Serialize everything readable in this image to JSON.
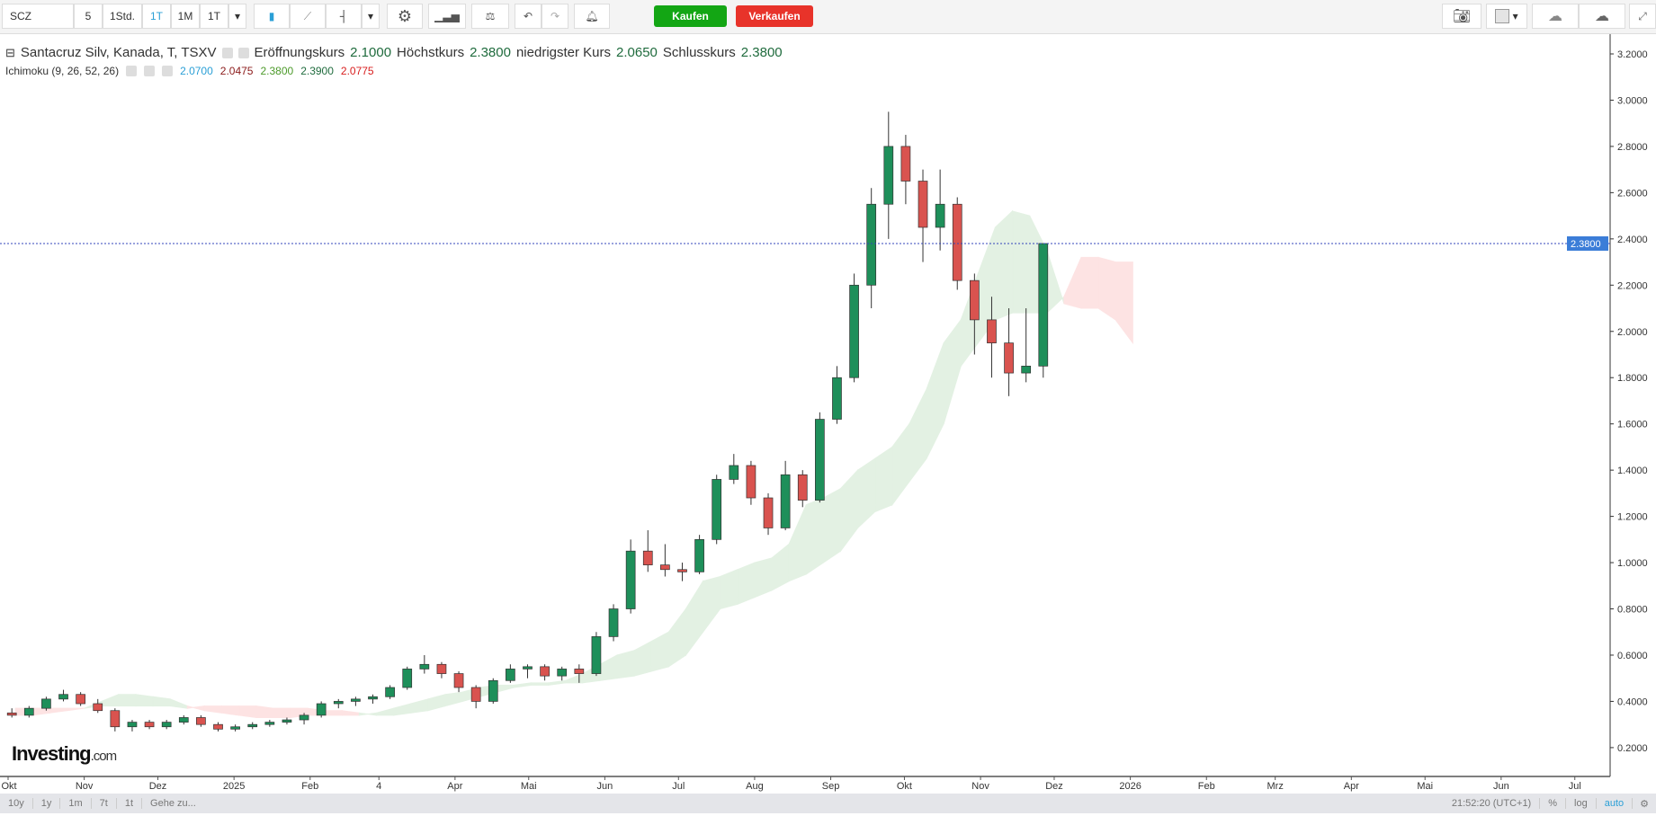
{
  "toolbar": {
    "symbol": "SCZ",
    "intervals": [
      "5",
      "1Std.",
      "1T",
      "1M",
      "1T"
    ],
    "selected_interval": "1T",
    "buy": "Kaufen",
    "sell": "Verkaufen",
    "buy_color": "#13a614",
    "sell_color": "#e8332a"
  },
  "legend": {
    "title": "Santacruz Silv, Kanada, T, TSXV",
    "open_label": "Eröffnungskurs",
    "open": "2.1000",
    "high_label": "Höchstkurs",
    "high": "2.3800",
    "low_label": "niedrigster Kurs",
    "low": "2.0650",
    "close_label": "Schlusskurs",
    "close": "2.3800",
    "indicator": "Ichimoku (9, 26, 52, 26)",
    "ind_values": [
      {
        "v": "2.0700",
        "c": "#2a9fd6"
      },
      {
        "v": "2.0475",
        "c": "#8b1a1a"
      },
      {
        "v": "2.3800",
        "c": "#4c9a2a"
      },
      {
        "v": "2.3900",
        "c": "#1f6b3d"
      },
      {
        "v": "2.0775",
        "c": "#d81e1e"
      }
    ]
  },
  "bottom": {
    "ranges": [
      "10y",
      "1y",
      "1m",
      "7t",
      "1t"
    ],
    "goto": "Gehe zu...",
    "time": "21:52:20 (UTC+1)",
    "percent": "%",
    "log": "log",
    "auto": "auto"
  },
  "logo": {
    "main": "Investing",
    "suffix": ".com"
  },
  "chart_data": {
    "type": "candlestick",
    "interval": "weekly approximation of daily",
    "last_price": 2.38,
    "last_price_label": "2.3800",
    "ylim": [
      0.1,
      3.25
    ],
    "yticks": [
      "0.2000",
      "0.4000",
      "0.6000",
      "0.8000",
      "1.0000",
      "1.2000",
      "1.4000",
      "1.6000",
      "1.8000",
      "2.0000",
      "2.2000",
      "2.4000",
      "2.6000",
      "2.8000",
      "3.0000",
      "3.2000"
    ],
    "xticks": [
      [
        "2024-10-01",
        "Okt"
      ],
      [
        "2024-11-01",
        "Nov"
      ],
      [
        "2024-12-01",
        "Dez"
      ],
      [
        "2025-01-01",
        "2025"
      ],
      [
        "2025-02-01",
        "Feb"
      ],
      [
        "2025-03-01",
        "4"
      ],
      [
        "2025-04-01",
        "Apr"
      ],
      [
        "2025-05-01",
        "Mai"
      ],
      [
        "2025-06-01",
        "Jun"
      ],
      [
        "2025-07-01",
        "Jul"
      ],
      [
        "2025-08-01",
        "Aug"
      ],
      [
        "2025-09-01",
        "Sep"
      ],
      [
        "2025-10-01",
        "Okt"
      ],
      [
        "2025-11-01",
        "Nov"
      ],
      [
        "2025-12-01",
        "Dez"
      ],
      [
        "2026-01-01",
        "2026"
      ],
      [
        "2026-02-01",
        "Feb"
      ],
      [
        "2026-03-01",
        "Mrz"
      ],
      [
        "2026-04-01",
        "Apr"
      ],
      [
        "2026-05-01",
        "Mai"
      ],
      [
        "2026-06-01",
        "Jun"
      ],
      [
        "2026-07-01",
        "Jul"
      ]
    ],
    "up_color": "#1e8f5a",
    "down_color": "#d9534f",
    "candles": [
      [
        "2024-10-04",
        0.35,
        0.37,
        0.33,
        0.34
      ],
      [
        "2024-10-11",
        0.34,
        0.38,
        0.33,
        0.37
      ],
      [
        "2024-10-18",
        0.37,
        0.42,
        0.36,
        0.41
      ],
      [
        "2024-10-25",
        0.41,
        0.45,
        0.4,
        0.43
      ],
      [
        "2024-11-01",
        0.43,
        0.44,
        0.38,
        0.39
      ],
      [
        "2024-11-08",
        0.39,
        0.41,
        0.35,
        0.36
      ],
      [
        "2024-11-15",
        0.36,
        0.37,
        0.27,
        0.29
      ],
      [
        "2024-11-22",
        0.29,
        0.32,
        0.27,
        0.31
      ],
      [
        "2024-11-29",
        0.31,
        0.32,
        0.28,
        0.29
      ],
      [
        "2024-12-06",
        0.29,
        0.32,
        0.28,
        0.31
      ],
      [
        "2024-12-13",
        0.31,
        0.34,
        0.3,
        0.33
      ],
      [
        "2024-12-20",
        0.33,
        0.34,
        0.29,
        0.3
      ],
      [
        "2024-12-27",
        0.3,
        0.31,
        0.27,
        0.28
      ],
      [
        "2025-01-03",
        0.28,
        0.3,
        0.27,
        0.29
      ],
      [
        "2025-01-10",
        0.29,
        0.31,
        0.28,
        0.3
      ],
      [
        "2025-01-17",
        0.3,
        0.32,
        0.29,
        0.31
      ],
      [
        "2025-01-24",
        0.31,
        0.33,
        0.3,
        0.32
      ],
      [
        "2025-01-31",
        0.32,
        0.35,
        0.3,
        0.34
      ],
      [
        "2025-02-07",
        0.34,
        0.4,
        0.33,
        0.39
      ],
      [
        "2025-02-14",
        0.39,
        0.41,
        0.37,
        0.4
      ],
      [
        "2025-02-21",
        0.4,
        0.42,
        0.38,
        0.41
      ],
      [
        "2025-02-28",
        0.41,
        0.43,
        0.39,
        0.42
      ],
      [
        "2025-03-07",
        0.42,
        0.47,
        0.41,
        0.46
      ],
      [
        "2025-03-14",
        0.46,
        0.55,
        0.45,
        0.54
      ],
      [
        "2025-03-21",
        0.54,
        0.6,
        0.52,
        0.56
      ],
      [
        "2025-03-28",
        0.56,
        0.57,
        0.5,
        0.52
      ],
      [
        "2025-04-04",
        0.52,
        0.53,
        0.44,
        0.46
      ],
      [
        "2025-04-11",
        0.46,
        0.47,
        0.37,
        0.4
      ],
      [
        "2025-04-18",
        0.4,
        0.5,
        0.39,
        0.49
      ],
      [
        "2025-04-25",
        0.49,
        0.56,
        0.48,
        0.54
      ],
      [
        "2025-05-02",
        0.54,
        0.56,
        0.5,
        0.55
      ],
      [
        "2025-05-09",
        0.55,
        0.56,
        0.49,
        0.51
      ],
      [
        "2025-05-16",
        0.51,
        0.55,
        0.49,
        0.54
      ],
      [
        "2025-05-23",
        0.54,
        0.56,
        0.48,
        0.52
      ],
      [
        "2025-05-30",
        0.52,
        0.7,
        0.51,
        0.68
      ],
      [
        "2025-06-06",
        0.68,
        0.82,
        0.66,
        0.8
      ],
      [
        "2025-06-13",
        0.8,
        1.1,
        0.78,
        1.05
      ],
      [
        "2025-06-20",
        1.05,
        1.14,
        0.96,
        0.99
      ],
      [
        "2025-06-27",
        0.99,
        1.08,
        0.94,
        0.97
      ],
      [
        "2025-07-04",
        0.97,
        1.0,
        0.92,
        0.96
      ],
      [
        "2025-07-11",
        0.96,
        1.12,
        0.95,
        1.1
      ],
      [
        "2025-07-18",
        1.1,
        1.38,
        1.08,
        1.36
      ],
      [
        "2025-07-25",
        1.36,
        1.47,
        1.34,
        1.42
      ],
      [
        "2025-08-01",
        1.42,
        1.44,
        1.25,
        1.28
      ],
      [
        "2025-08-08",
        1.28,
        1.3,
        1.12,
        1.15
      ],
      [
        "2025-08-15",
        1.15,
        1.44,
        1.14,
        1.38
      ],
      [
        "2025-08-22",
        1.38,
        1.4,
        1.24,
        1.27
      ],
      [
        "2025-08-29",
        1.27,
        1.65,
        1.26,
        1.62
      ],
      [
        "2025-09-05",
        1.62,
        1.85,
        1.6,
        1.8
      ],
      [
        "2025-09-12",
        1.8,
        2.25,
        1.78,
        2.2
      ],
      [
        "2025-09-19",
        2.2,
        2.62,
        2.1,
        2.55
      ],
      [
        "2025-09-26",
        2.55,
        2.95,
        2.4,
        2.8
      ],
      [
        "2025-10-03",
        2.8,
        2.85,
        2.55,
        2.65
      ],
      [
        "2025-10-10",
        2.65,
        2.7,
        2.3,
        2.45
      ],
      [
        "2025-10-17",
        2.45,
        2.7,
        2.35,
        2.55
      ],
      [
        "2025-10-24",
        2.55,
        2.58,
        2.18,
        2.22
      ],
      [
        "2025-10-31",
        2.22,
        2.25,
        1.9,
        2.05
      ],
      [
        "2025-11-07",
        2.05,
        2.15,
        1.8,
        1.95
      ],
      [
        "2025-11-14",
        1.95,
        2.1,
        1.72,
        1.82
      ],
      [
        "2025-11-21",
        1.82,
        2.1,
        1.78,
        1.85
      ],
      [
        "2025-11-28",
        1.85,
        2.38,
        1.8,
        2.38
      ]
    ],
    "cloud_up_color": "#e3f1e3",
    "cloud_down_color": "#fde3e3",
    "cloud": [
      [
        "2024-10-04",
        0.34,
        0.37
      ],
      [
        "2024-10-11",
        0.34,
        0.37
      ],
      [
        "2024-10-18",
        0.35,
        0.37
      ],
      [
        "2024-10-25",
        0.36,
        0.37
      ],
      [
        "2024-11-01",
        0.37,
        0.37
      ],
      [
        "2024-11-08",
        0.4,
        0.38
      ],
      [
        "2024-11-15",
        0.43,
        0.38
      ],
      [
        "2024-11-22",
        0.43,
        0.38
      ],
      [
        "2024-11-29",
        0.42,
        0.38
      ],
      [
        "2024-12-06",
        0.41,
        0.38
      ],
      [
        "2024-12-13",
        0.38,
        0.37
      ],
      [
        "2024-12-20",
        0.36,
        0.38
      ],
      [
        "2024-12-27",
        0.35,
        0.38
      ],
      [
        "2025-01-03",
        0.34,
        0.38
      ],
      [
        "2025-01-10",
        0.33,
        0.38
      ],
      [
        "2025-01-17",
        0.33,
        0.37
      ],
      [
        "2025-01-24",
        0.33,
        0.37
      ],
      [
        "2025-01-31",
        0.34,
        0.37
      ],
      [
        "2025-02-07",
        0.34,
        0.36
      ],
      [
        "2025-02-14",
        0.34,
        0.36
      ],
      [
        "2025-02-21",
        0.34,
        0.35
      ],
      [
        "2025-02-28",
        0.35,
        0.34
      ],
      [
        "2025-03-07",
        0.37,
        0.34
      ],
      [
        "2025-03-14",
        0.39,
        0.35
      ],
      [
        "2025-03-21",
        0.41,
        0.36
      ],
      [
        "2025-03-28",
        0.43,
        0.38
      ],
      [
        "2025-04-04",
        0.44,
        0.4
      ],
      [
        "2025-04-11",
        0.46,
        0.42
      ],
      [
        "2025-04-18",
        0.47,
        0.44
      ],
      [
        "2025-04-25",
        0.47,
        0.46
      ],
      [
        "2025-05-02",
        0.48,
        0.47
      ],
      [
        "2025-05-09",
        0.48,
        0.47
      ],
      [
        "2025-05-16",
        0.49,
        0.48
      ],
      [
        "2025-05-23",
        0.52,
        0.48
      ],
      [
        "2025-05-30",
        0.56,
        0.49
      ],
      [
        "2025-06-06",
        0.6,
        0.5
      ],
      [
        "2025-06-13",
        0.62,
        0.51
      ],
      [
        "2025-06-20",
        0.66,
        0.53
      ],
      [
        "2025-06-27",
        0.7,
        0.55
      ],
      [
        "2025-07-04",
        0.8,
        0.6
      ],
      [
        "2025-07-11",
        0.92,
        0.7
      ],
      [
        "2025-07-18",
        0.94,
        0.8
      ],
      [
        "2025-07-25",
        0.97,
        0.82
      ],
      [
        "2025-08-01",
        1.0,
        0.85
      ],
      [
        "2025-08-08",
        1.02,
        0.88
      ],
      [
        "2025-08-15",
        1.08,
        0.92
      ],
      [
        "2025-08-22",
        1.25,
        0.95
      ],
      [
        "2025-08-29",
        1.28,
        1.0
      ],
      [
        "2025-09-05",
        1.32,
        1.05
      ],
      [
        "2025-09-12",
        1.4,
        1.15
      ],
      [
        "2025-09-19",
        1.45,
        1.22
      ],
      [
        "2025-09-26",
        1.5,
        1.25
      ],
      [
        "2025-10-03",
        1.6,
        1.35
      ],
      [
        "2025-10-10",
        1.75,
        1.45
      ],
      [
        "2025-10-17",
        1.95,
        1.6
      ],
      [
        "2025-10-24",
        2.05,
        1.85
      ],
      [
        "2025-10-31",
        2.25,
        1.95
      ],
      [
        "2025-11-07",
        2.45,
        2.05
      ],
      [
        "2025-11-14",
        2.52,
        2.08
      ],
      [
        "2025-11-21",
        2.5,
        2.08
      ],
      [
        "2025-11-28",
        2.35,
        2.08
      ],
      [
        "2025-12-05",
        2.12,
        2.15
      ],
      [
        "2025-12-12",
        2.1,
        2.32
      ],
      [
        "2025-12-19",
        2.1,
        2.32
      ],
      [
        "2025-12-26",
        2.05,
        2.3
      ],
      [
        "2026-01-02",
        1.95,
        2.3
      ]
    ]
  }
}
